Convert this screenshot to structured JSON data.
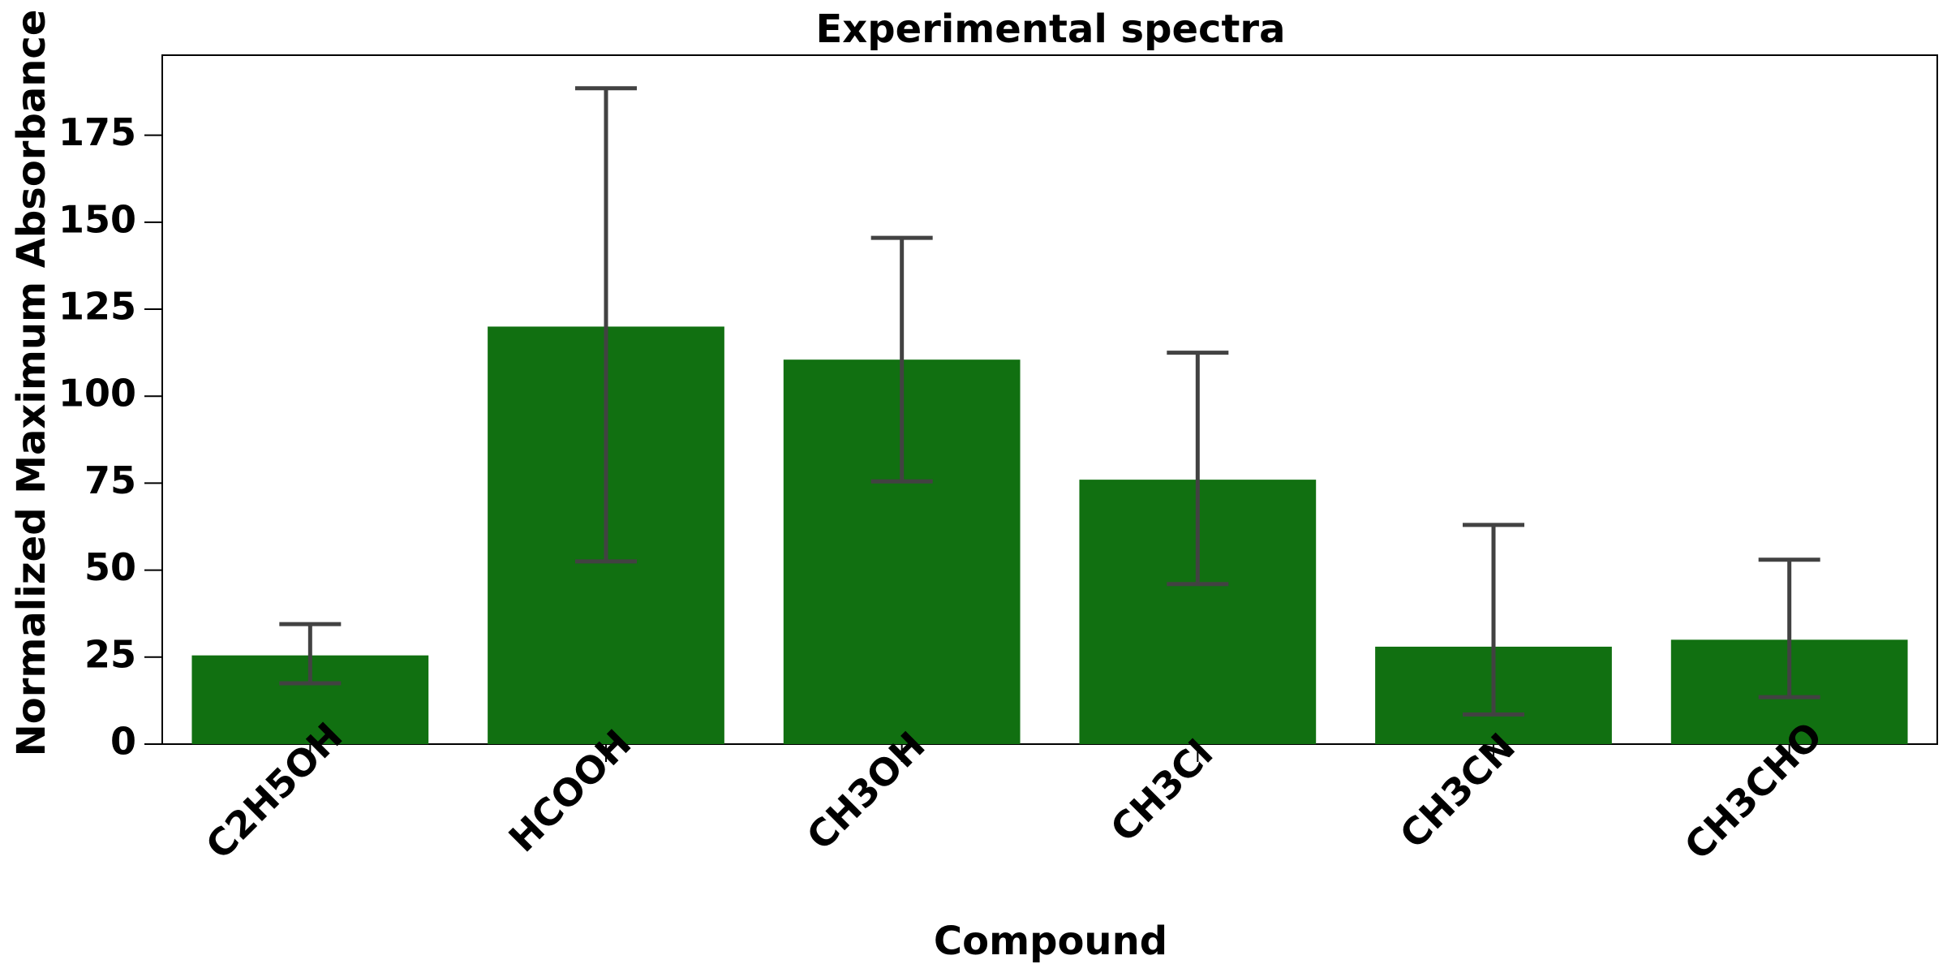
{
  "chart_data": {
    "type": "bar",
    "title": "Experimental spectra",
    "xlabel": "Compound",
    "ylabel": "Normalized Maximum Absorbance",
    "categories": [
      "C2H5OH",
      "HCOOH",
      "CH3OH",
      "CH3Cl",
      "CH3CN",
      "CH3CHO"
    ],
    "values": [
      25.5,
      120,
      110.5,
      76,
      28,
      30
    ],
    "error_low": [
      17.5,
      52.5,
      75.5,
      46,
      8.5,
      13.5
    ],
    "error_high": [
      34.5,
      188.5,
      145.5,
      112.5,
      63,
      53
    ],
    "yticks": [
      0,
      25,
      50,
      75,
      100,
      125,
      150,
      175
    ],
    "ylim": [
      0,
      198
    ],
    "grid": false,
    "colors": {
      "bar": "#117011",
      "error_bar": "#424242",
      "axis": "#000000"
    }
  }
}
